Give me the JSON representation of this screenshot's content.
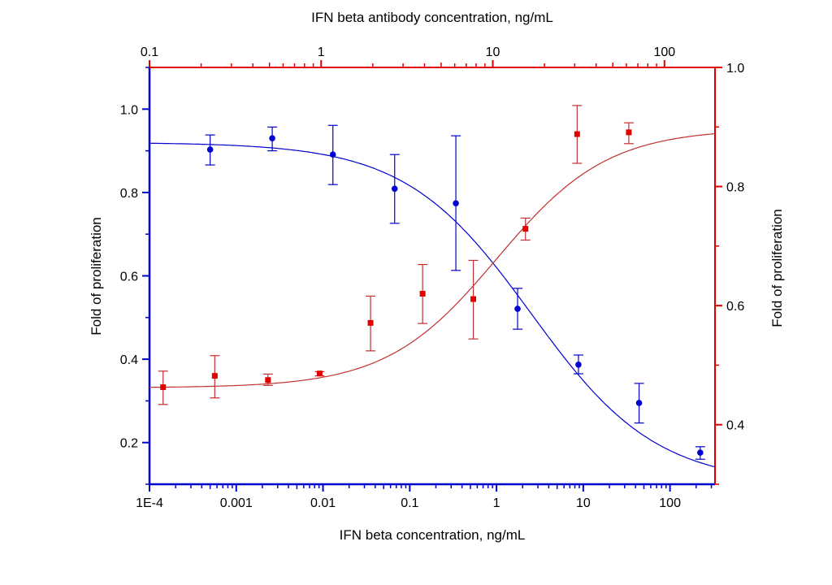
{
  "chart_data": {
    "type": "scatter",
    "colors": {
      "blue_series": "#0000d0",
      "red_series": "#e00000",
      "red_curve": "#c03030"
    },
    "x_bottom": {
      "label": "IFN beta concentration, ng/mL",
      "scale": "log",
      "range": [
        0.0001,
        330
      ],
      "ticks": [
        "1E-4",
        "0.001",
        "0.01",
        "0.1",
        "1",
        "10",
        "100"
      ],
      "tick_values": [
        0.0001,
        0.001,
        0.01,
        0.1,
        1,
        10,
        100
      ]
    },
    "x_top": {
      "label": "IFN beta antibody concentration, ng/mL",
      "scale": "log",
      "range": [
        0.1,
        197
      ],
      "ticks": [
        "0.1",
        "1",
        "10",
        "100"
      ],
      "tick_values": [
        0.1,
        1,
        10,
        100
      ]
    },
    "y_left": {
      "label": "Fold of proliferation",
      "range": [
        0.1,
        1.1
      ],
      "ticks": [
        "0.2",
        "0.4",
        "0.6",
        "0.8",
        "1.0"
      ],
      "tick_values": [
        0.2,
        0.4,
        0.6,
        0.8,
        1.0
      ]
    },
    "y_right": {
      "label": "Fold of proliferation",
      "range": [
        0.3,
        1.0
      ],
      "ticks": [
        "0.4",
        "0.6",
        "0.8",
        "1.0"
      ],
      "tick_values": [
        0.4,
        0.6,
        0.8,
        1.0
      ]
    },
    "grid": false,
    "series": [
      {
        "axes": "bottom-left",
        "marker": "circle",
        "color": "#0000d0",
        "x": [
          0.0005,
          0.0026,
          0.013,
          0.067,
          0.34,
          1.75,
          8.8,
          44,
          223
        ],
        "y": [
          0.903,
          0.93,
          0.891,
          0.809,
          0.774,
          0.521,
          0.387,
          0.295,
          0.176
        ],
        "err_high": [
          0.938,
          0.957,
          0.961,
          0.891,
          0.936,
          0.57,
          0.41,
          0.342,
          0.19
        ],
        "err_low": [
          0.866,
          0.9,
          0.819,
          0.726,
          0.613,
          0.472,
          0.365,
          0.247,
          0.16
        ],
        "fit": {
          "top": 0.92,
          "bottom": 0.1,
          "ec50": 2.5,
          "hill": 0.6
        }
      },
      {
        "axes": "top-right",
        "marker": "square",
        "color": "#e00000",
        "x": [
          0.12,
          0.24,
          0.49,
          0.98,
          1.94,
          3.9,
          7.7,
          15.5,
          31,
          62
        ],
        "y": [
          0.463,
          0.482,
          0.475,
          0.486,
          0.571,
          0.62,
          0.611,
          0.729,
          0.888,
          0.891
        ],
        "err_high": [
          0.49,
          0.516,
          0.485,
          0.489,
          0.616,
          0.669,
          0.676,
          0.747,
          0.936,
          0.907
        ],
        "err_low": [
          0.434,
          0.445,
          0.466,
          0.482,
          0.524,
          0.57,
          0.544,
          0.71,
          0.839,
          0.872
        ],
        "fit": {
          "top": 0.897,
          "bottom": 0.462,
          "ec50": 10.6,
          "hill": 1.35
        }
      }
    ]
  }
}
